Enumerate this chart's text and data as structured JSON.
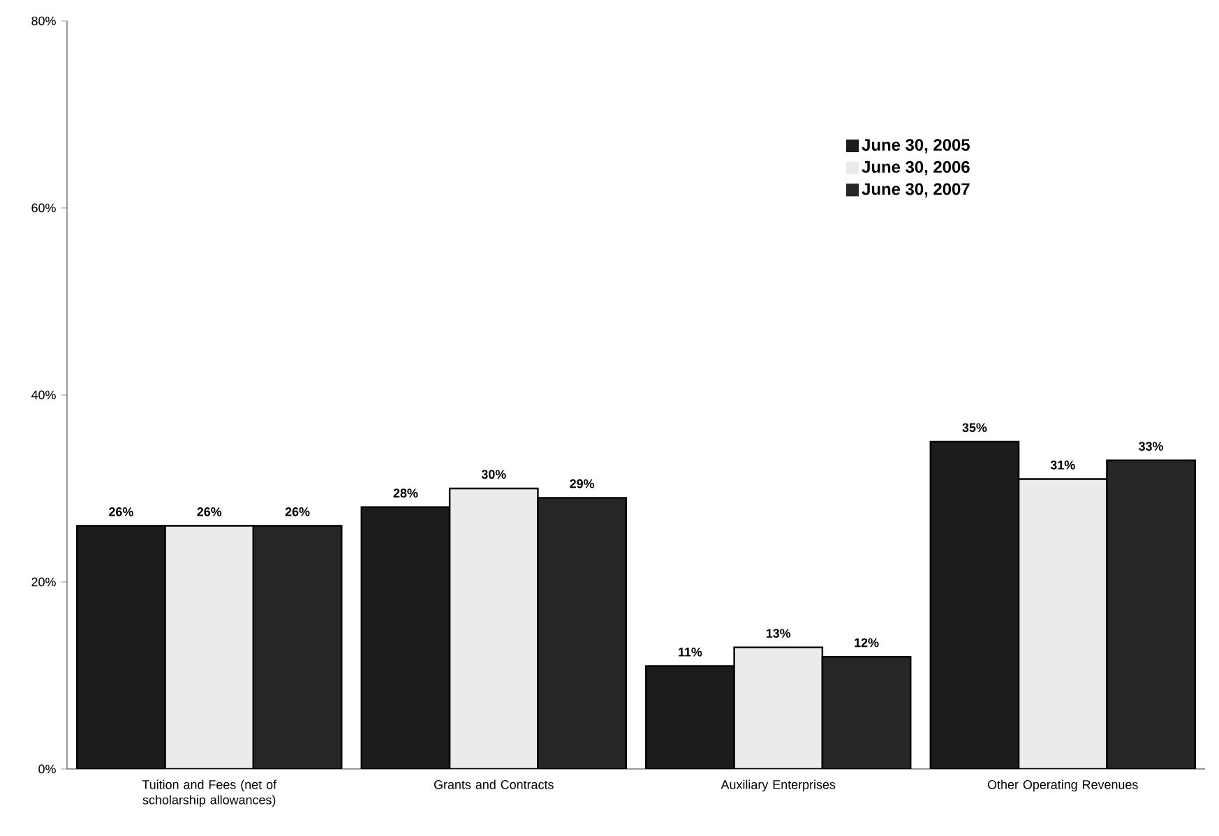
{
  "chart_data": {
    "type": "bar",
    "categories": [
      "Tuition and Fees (net of scholarship allowances)",
      "Grants and Contracts",
      "Auxiliary Enterprises",
      "Other Operating Revenues"
    ],
    "series": [
      {
        "name": "June 30, 2005",
        "color": "#1c1c1c",
        "values": [
          26,
          28,
          11,
          35
        ],
        "value_labels": [
          "26%",
          "28%",
          "11%",
          "35%"
        ]
      },
      {
        "name": "June 30, 2006",
        "color": "#ebebeb",
        "values": [
          26,
          30,
          13,
          31
        ],
        "value_labels": [
          "26%",
          "30%",
          "13%",
          "31%"
        ]
      },
      {
        "name": "June 30, 2007",
        "color": "#262626",
        "values": [
          26,
          29,
          12,
          33
        ],
        "value_labels": [
          "26%",
          "29%",
          "12%",
          "33%"
        ]
      }
    ],
    "ylim": [
      0,
      80
    ],
    "yticks": [
      {
        "value": 0,
        "label": "0%"
      },
      {
        "value": 20,
        "label": "20%"
      },
      {
        "value": 40,
        "label": "40%"
      },
      {
        "value": 60,
        "label": "60%"
      },
      {
        "value": 80,
        "label": "80%"
      }
    ],
    "legend": "top right"
  }
}
